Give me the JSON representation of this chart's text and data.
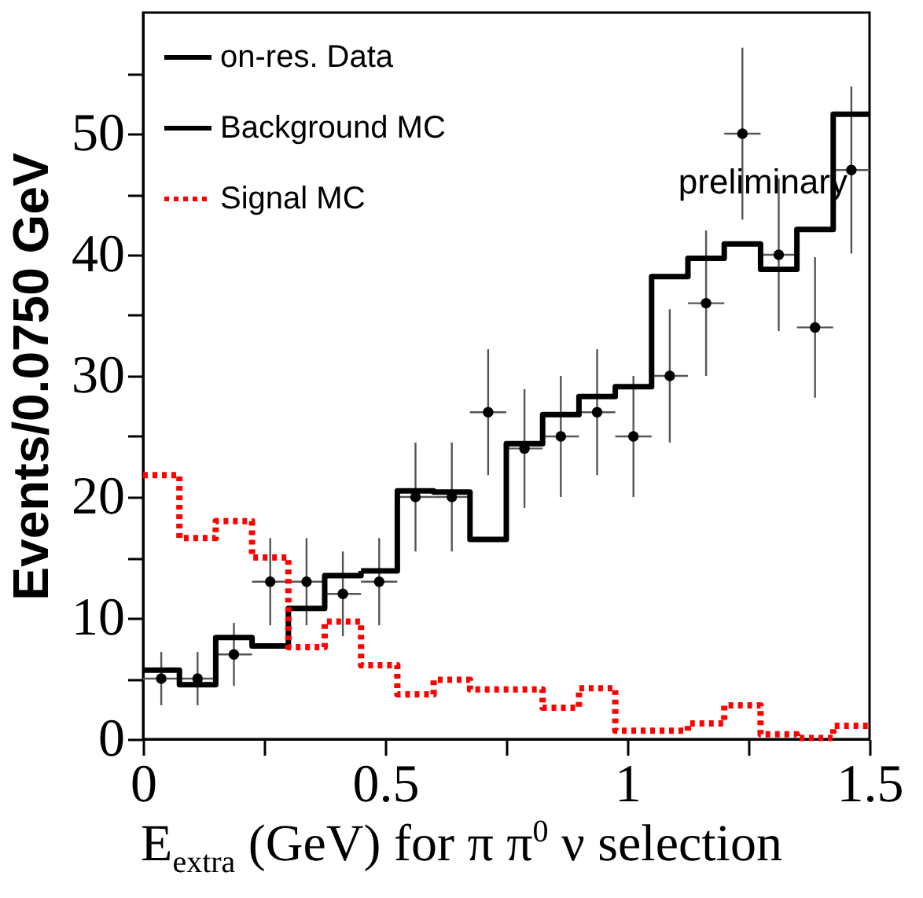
{
  "chart_data": {
    "type": "histogram",
    "xlabel": "E$_{extra}$ (GeV) for π π$^{0}$ ν selection",
    "ylabel": "Events/0.0750 GeV",
    "annotations": [
      "preliminary"
    ],
    "bins": [
      0,
      0.075,
      0.15,
      0.225,
      0.3,
      0.375,
      0.45,
      0.525,
      0.6,
      0.675,
      0.75,
      0.825,
      0.9,
      0.975,
      1.05,
      1.125,
      1.2,
      1.275,
      1.35,
      1.425,
      1.5
    ],
    "series": [
      {
        "name": "on-res. Data",
        "type": "scatter",
        "color": "#000000",
        "marker": "circle",
        "x": [
          0.0375,
          0.1125,
          0.1875,
          0.2625,
          0.3375,
          0.4125,
          0.4875,
          0.5625,
          0.6375,
          0.7125,
          0.7875,
          0.8625,
          0.9375,
          1.0125,
          1.0875,
          1.1625,
          1.2375,
          1.3125,
          1.3875,
          1.4625
        ],
        "values": [
          5,
          5,
          7,
          13,
          13,
          12,
          13,
          20,
          20,
          27,
          24,
          25,
          27,
          25,
          30,
          36,
          50,
          40,
          34,
          47
        ],
        "errors": [
          2.2,
          2.2,
          2.6,
          3.6,
          3.6,
          3.5,
          3.6,
          4.5,
          4.5,
          5.2,
          4.9,
          5,
          5.2,
          5,
          5.5,
          6,
          7.1,
          6.3,
          5.8,
          6.9
        ],
        "xerrors": [
          0.0375,
          0.0375,
          0.0375,
          0.0375,
          0.0375,
          0.0375,
          0.0375,
          0.0375,
          0.0375,
          0.0375,
          0.0375,
          0.0375,
          0.0375,
          0.0375,
          0.0375,
          0.0375,
          0.0375,
          0.0375,
          0.0375,
          0.0375
        ]
      },
      {
        "name": "Background MC",
        "type": "histogram",
        "color": "#000000",
        "line_style": "solid",
        "values": [
          5.7,
          4.5,
          8.4,
          7.7,
          10.8,
          13.5,
          13.9,
          20.5,
          20.4,
          16.5,
          24.4,
          26.8,
          28.3,
          29.1,
          38.2,
          39.7,
          40.9,
          38.8,
          42.1,
          51.6
        ]
      },
      {
        "name": "Signal MC",
        "type": "histogram",
        "color": "#ff0000",
        "line_style": "dotted",
        "values": [
          21.8,
          16.6,
          18,
          15,
          7.6,
          9.7,
          6.1,
          3.7,
          4.9,
          4.1,
          4.1,
          2.6,
          4.2,
          0.7,
          0.7,
          1.3,
          2.8,
          0.4,
          0.1,
          1.1
        ]
      }
    ],
    "xlim": [
      0,
      1.5
    ],
    "xticks": [
      0,
      {
        "value": 0.25,
        "label": null
      },
      0.5,
      {
        "value": 0.75,
        "label": null
      },
      1,
      {
        "value": 1.25,
        "label": null
      },
      1.5
    ],
    "ylim": [
      0,
      60
    ],
    "yticks": [
      0,
      {
        "value": 5,
        "label": null
      },
      10,
      {
        "value": 15,
        "label": null
      },
      20,
      {
        "value": 25,
        "label": null
      },
      30,
      {
        "value": 35,
        "label": null
      },
      40,
      {
        "value": 45,
        "label": null
      },
      50,
      {
        "value": 55,
        "label": null
      }
    ],
    "legend": "top left"
  }
}
